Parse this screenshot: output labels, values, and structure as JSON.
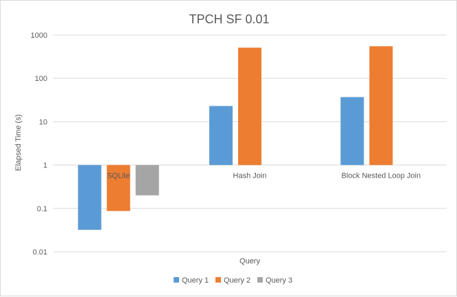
{
  "chart_data": {
    "type": "bar",
    "title": "TPCH SF 0.01",
    "xlabel": "Query",
    "ylabel": "Elapsed Time (s)",
    "yscale": "log",
    "ylim": [
      0.01,
      1000
    ],
    "yticks": [
      {
        "value": 1000,
        "label": "1000"
      },
      {
        "value": 100,
        "label": "100"
      },
      {
        "value": 10,
        "label": "10"
      },
      {
        "value": 1,
        "label": "1"
      },
      {
        "value": 0.1,
        "label": "0.1"
      },
      {
        "value": 0.01,
        "label": "0.01"
      }
    ],
    "grid": true,
    "legend": "bottom",
    "categories": [
      "SQLite",
      "Hash Join",
      "Block Nested Loop Join"
    ],
    "series": [
      {
        "name": "Query 1",
        "color": "#5b9bd5",
        "values": [
          0.032,
          23,
          37
        ]
      },
      {
        "name": "Query 2",
        "color": "#ed7d31",
        "values": [
          0.087,
          510,
          550
        ]
      },
      {
        "name": "Query 3",
        "color": "#a5a5a5",
        "values": [
          0.2,
          null,
          null
        ]
      }
    ]
  }
}
